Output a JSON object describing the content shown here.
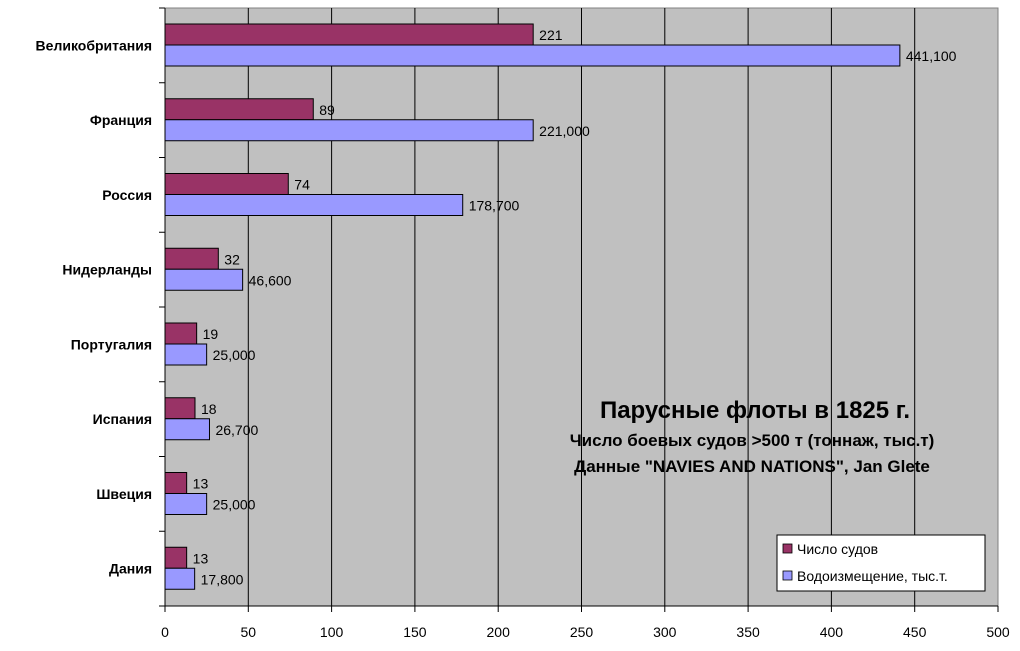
{
  "chart_data": {
    "type": "bar",
    "orientation": "horizontal",
    "title": "Парусные флоты в 1825 г.",
    "subtitle_lines": [
      "Число боевых судов >500 т (тоннаж, тыс.т)",
      "Данные \"NAVIES AND NATIONS\", Jan Glete"
    ],
    "categories": [
      "Великобритания",
      "Франция",
      "Россия",
      "Нидерланды",
      "Португалия",
      "Испания",
      "Швеция",
      "Дания"
    ],
    "series": [
      {
        "name": "Число судов",
        "color": "#993366",
        "values": [
          221,
          89,
          74,
          32,
          19,
          18,
          13,
          13
        ],
        "labels": [
          "221",
          "89",
          "74",
          "32",
          "19",
          "18",
          "13",
          "13"
        ]
      },
      {
        "name": "Водоизмещение, тыс.т.",
        "color": "#9999FF",
        "values": [
          441.1,
          221.0,
          178.7,
          46.6,
          25.0,
          26.7,
          25.0,
          17.8
        ],
        "labels": [
          "441,100",
          "221,000",
          "178,700",
          "46,600",
          "25,000",
          "26,700",
          "25,000",
          "17,800"
        ]
      }
    ],
    "xlim": [
      0,
      500
    ],
    "xticks": [
      "0",
      "50",
      "100",
      "150",
      "200",
      "250",
      "300",
      "350",
      "400",
      "450",
      "500"
    ],
    "grid": true,
    "plot_background": "#C0C0C0",
    "legend_position": "bottom-right"
  }
}
